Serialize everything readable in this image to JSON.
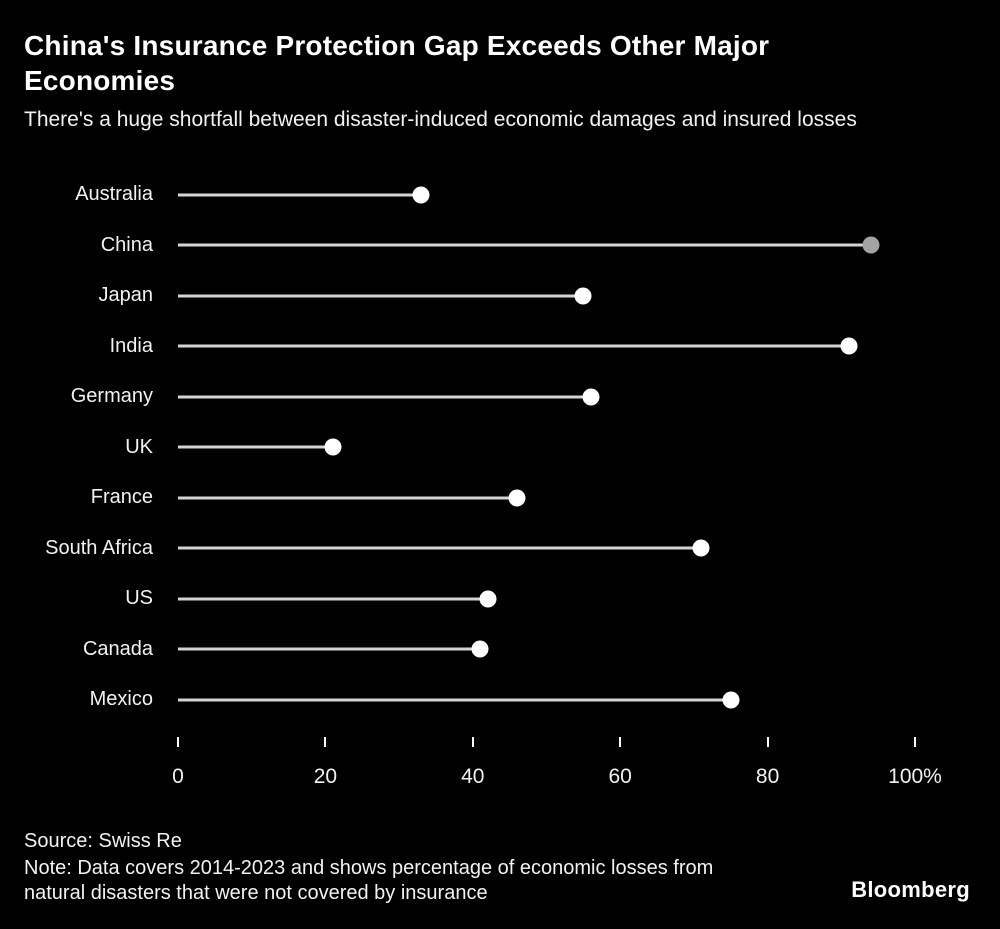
{
  "header": {
    "title": "China's Insurance Protection Gap Exceeds Other Major Economies",
    "subtitle": "There's a huge shortfall between disaster-induced economic damages and insured losses"
  },
  "chart_data": {
    "type": "lollipop-bar",
    "categories": [
      "Australia",
      "China",
      "Japan",
      "India",
      "Germany",
      "UK",
      "France",
      "South Africa",
      "US",
      "Canada",
      "Mexico"
    ],
    "values": [
      33,
      94,
      55,
      91,
      56,
      21,
      46,
      71,
      42,
      41,
      75
    ],
    "highlight_category": "China",
    "dot_color": "#ffffff",
    "highlight_dot_color": "#a3a3a3",
    "line_color": "#d4d4d4",
    "xlim": [
      0,
      100
    ],
    "x_ticks": [
      {
        "value": 0,
        "label": "0"
      },
      {
        "value": 20,
        "label": "20"
      },
      {
        "value": 40,
        "label": "40"
      },
      {
        "value": 60,
        "label": "60"
      },
      {
        "value": 80,
        "label": "80"
      },
      {
        "value": 100,
        "label": "100%"
      }
    ],
    "grid": false,
    "legend": "none",
    "orientation": "horizontal"
  },
  "footer": {
    "source": "Source: Swiss Re",
    "note": "Note: Data covers 2014-2023 and shows percentage of economic losses from natural disasters that were not covered by insurance",
    "brand": "Bloomberg"
  }
}
